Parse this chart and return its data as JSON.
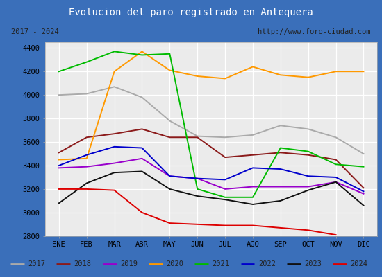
{
  "title": "Evolucion del paro registrado en Antequera",
  "subtitle_left": "2017 - 2024",
  "subtitle_right": "http://www.foro-ciudad.com",
  "months": [
    "ENE",
    "FEB",
    "MAR",
    "ABR",
    "MAY",
    "JUN",
    "JUL",
    "AGO",
    "SEP",
    "OCT",
    "NOV",
    "DIC"
  ],
  "series": {
    "2017": [
      4000,
      4010,
      4070,
      3980,
      3780,
      3650,
      3640,
      3660,
      3740,
      3710,
      3640,
      3500
    ],
    "2018": [
      3510,
      3640,
      3670,
      3710,
      3640,
      3640,
      3470,
      3490,
      3510,
      3490,
      3450,
      3210
    ],
    "2019": [
      3380,
      3390,
      3420,
      3460,
      3310,
      3290,
      3200,
      3220,
      3220,
      3220,
      3260,
      3160
    ],
    "2020": [
      3450,
      3460,
      4200,
      4370,
      4210,
      4160,
      4140,
      4240,
      4170,
      4150,
      4200,
      4200
    ],
    "2021": [
      4200,
      4280,
      4370,
      4340,
      4350,
      3200,
      3130,
      3130,
      3550,
      3520,
      3410,
      3390
    ],
    "2022": [
      3400,
      3490,
      3560,
      3550,
      3310,
      3290,
      3280,
      3380,
      3370,
      3310,
      3300,
      3180
    ],
    "2023": [
      3080,
      3250,
      3340,
      3350,
      3200,
      3140,
      3110,
      3070,
      3100,
      3190,
      3260,
      3060
    ],
    "2024": [
      3200,
      3200,
      3190,
      3000,
      2910,
      2900,
      2890,
      2890,
      2870,
      2850,
      2810,
      null
    ]
  },
  "colors": {
    "2017": "#aaaaaa",
    "2018": "#8b1a1a",
    "2019": "#9900cc",
    "2020": "#ff9900",
    "2021": "#00bb00",
    "2022": "#0000cc",
    "2023": "#111111",
    "2024": "#dd0000"
  },
  "ylim": [
    2800,
    4450
  ],
  "yticks": [
    2800,
    3000,
    3200,
    3400,
    3600,
    3800,
    4000,
    4200,
    4400
  ],
  "title_bg": "#4d7ebf",
  "title_color": "#ffffff",
  "subtitle_bg": "#e0e0e0",
  "plot_bg": "#ebebeb",
  "grid_color": "#ffffff",
  "border_color": "#3a6fba",
  "legend_bg": "#f0f0f0"
}
